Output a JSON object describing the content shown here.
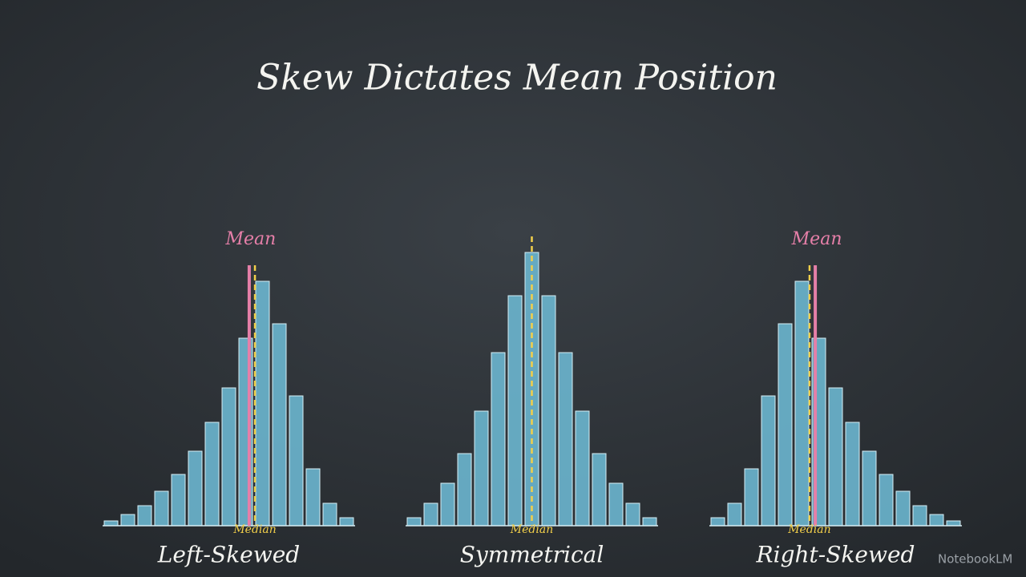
{
  "title": "Skew Dictates Mean Position",
  "watermark": "NotebookLM",
  "chart_data": [
    {
      "type": "bar",
      "title": "Left-Skewed",
      "color": "#6cb6cf",
      "ylim": [
        0,
        350
      ],
      "values": [
        6,
        14,
        25,
        43,
        64,
        93,
        129,
        172,
        234,
        305,
        252,
        162,
        71,
        28,
        10
      ],
      "median": {
        "label": "Median",
        "x": 8.55
      },
      "mean": {
        "label": "Mean",
        "x": 8.21
      }
    },
    {
      "type": "bar",
      "title": "Symmetrical",
      "color": "#6cb6cf",
      "ylim": [
        0,
        350
      ],
      "values": [
        10,
        28,
        53,
        90,
        143,
        216,
        287,
        341,
        287,
        216,
        143,
        90,
        53,
        28,
        10
      ],
      "median": {
        "label": "Median",
        "x": 7
      }
    },
    {
      "type": "bar",
      "title": "Right-Skewed",
      "color": "#6cb6cf",
      "ylim": [
        0,
        350
      ],
      "values": [
        10,
        28,
        71,
        162,
        252,
        305,
        234,
        172,
        129,
        93,
        64,
        43,
        25,
        14,
        6
      ],
      "median": {
        "label": "Median",
        "x": 5.45
      },
      "mean": {
        "label": "Mean",
        "x": 5.79
      }
    }
  ]
}
